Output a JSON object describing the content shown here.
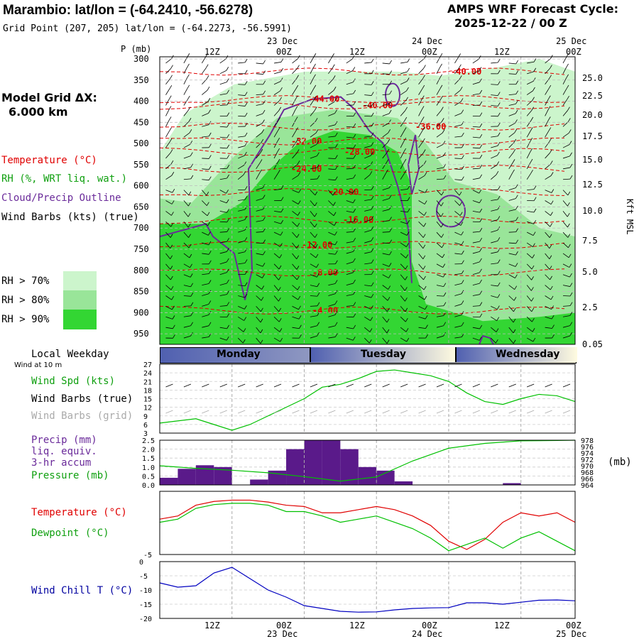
{
  "header": {
    "station_line": "Marambio:  lat/lon = (-64.2410, -56.6278)",
    "grid_line": "Grid Point (207, 205) lat/lon = (-64.2273, -56.5991)",
    "cycle_title": "AMPS WRF Forecast Cycle:",
    "cycle_value": "2025-12-22 / 00  Z"
  },
  "left_panel": {
    "p_label": "P (mb)",
    "model_grid_label": "Model Grid ΔX:",
    "model_grid_value": "6.000 km",
    "legend_temperature": "Temperature (°C)",
    "legend_rh": "RH (%, WRT liq. wat.)",
    "legend_cloud": "Cloud/Precip Outline",
    "legend_wind": "Wind Barbs (kts) (true)",
    "rh_70": "RH > 70%",
    "rh_80": "RH > 80%",
    "rh_90": "RH > 90%",
    "local_weekday": "Local Weekday",
    "wind_at_10m": "Wind at 10 m",
    "wind_spd": "Wind Spd (kts)",
    "wind_barbs_true": "Wind Barbs (true)",
    "wind_barbs_grid": "Wind Barbs (grid)",
    "precip_1": "Precip (mm)",
    "precip_2": "liq. equiv.",
    "precip_3": "3-hr accum",
    "pressure": "Pressure (mb)",
    "pressure_unit": "(mb)",
    "temperature2": "Temperature (°C)",
    "dewpoint": "Dewpoint (°C)",
    "windchill": "Wind Chill T (°C)"
  },
  "time_axis": {
    "top_ticks": [
      "12Z",
      "00Z",
      "12Z",
      "00Z",
      "12Z",
      "00Z"
    ],
    "top_dates": [
      "23 Dec",
      "24 Dec",
      "25 Dec"
    ],
    "bottom_ticks": [
      "12Z",
      "00Z",
      "12Z",
      "00Z",
      "12Z",
      "00Z"
    ],
    "bottom_dates": [
      "23 Dec",
      "24 Dec",
      "25 Dec"
    ],
    "weekdays": [
      "Monday",
      "Tuesday",
      "Wednesday"
    ]
  },
  "colors": {
    "temperature": "#e00000",
    "dewpoint": "#00c000",
    "windspd": "#00c000",
    "rh70": "#ccf5cc",
    "rh80": "#99e599",
    "rh90": "#33d633",
    "cloud": "#6a2a9a",
    "precip": "#5a1a8a",
    "windchill": "#0000c0",
    "label_red": "#e00000",
    "label_green": "#10a010",
    "label_purple": "#6a2a9a",
    "label_grey": "#aaaaaa",
    "label_blue": "#0000a0"
  },
  "chart_data": [
    {
      "type": "heatmap",
      "name": "vertical cross-section",
      "y_axis_left": {
        "label": "P (mb)",
        "ticks": [
          300,
          350,
          400,
          450,
          500,
          550,
          600,
          650,
          700,
          750,
          800,
          850,
          900,
          950
        ]
      },
      "y_axis_right": {
        "label": "Kft MSL",
        "ticks": [
          "25.0",
          "22.5",
          "20.0",
          "17.5",
          "15.0",
          "12.5",
          "10.0",
          "7.5",
          "5.0",
          "2.5",
          "0.05"
        ]
      },
      "temperature_contour_labels": [
        "-40.00",
        "-44.00",
        "-40.00",
        "-36.00",
        "-32.00",
        "-28.00",
        "-24.00",
        "-20.00",
        "-16.00",
        "-12.00",
        "-8.00",
        "-4.00"
      ]
    },
    {
      "type": "line",
      "name": "wind speed",
      "yticks": [
        3,
        6,
        9,
        12,
        15,
        18,
        21,
        24,
        27
      ],
      "ylim": [
        3,
        27
      ],
      "x_hours": [
        0,
        6,
        9,
        12,
        15,
        18,
        21,
        24,
        27,
        30,
        33,
        36,
        39,
        42,
        45,
        48,
        51,
        54,
        57,
        60,
        63,
        66,
        69
      ],
      "values": [
        6.5,
        8,
        6,
        4,
        6,
        9,
        12,
        15,
        19,
        20,
        22,
        24.5,
        25,
        24,
        23,
        21,
        17,
        14,
        13,
        15,
        16.5,
        16,
        14
      ]
    },
    {
      "type": "bar",
      "name": "precip and pressure",
      "yticks_left": [
        "0.0",
        "0.5",
        "1.0",
        "1.5",
        "2.0",
        "2.5"
      ],
      "yticks_right": [
        "964",
        "966",
        "968",
        "970",
        "972",
        "974",
        "976",
        "978"
      ],
      "precip_x_hours": [
        0,
        3,
        6,
        9,
        12,
        15,
        18,
        21,
        24,
        27,
        30,
        33,
        36,
        39,
        42,
        45,
        48,
        51,
        54,
        57,
        60,
        63,
        66
      ],
      "precip_values": [
        0.4,
        0.9,
        1.1,
        1.0,
        0.0,
        0.3,
        0.8,
        2.0,
        2.5,
        2.5,
        2.0,
        1.0,
        0.8,
        0.2,
        0.0,
        0.0,
        0.0,
        0.0,
        0.0,
        0.1,
        0.0,
        0.0,
        0.0
      ],
      "pressure_x_hours": [
        0,
        6,
        12,
        18,
        24,
        30,
        36,
        42,
        48,
        54,
        60,
        66,
        69
      ],
      "pressure_values": [
        970,
        969.2,
        968.6,
        967.8,
        966.6,
        965.2,
        966.5,
        971.5,
        975.5,
        977,
        977.8,
        977.9,
        978
      ]
    },
    {
      "type": "line",
      "name": "temperature and dewpoint",
      "yticks": [
        "-5"
      ],
      "x_hours": [
        0,
        3,
        6,
        9,
        12,
        15,
        18,
        21,
        24,
        27,
        30,
        33,
        36,
        39,
        42,
        45,
        48,
        51,
        54,
        57,
        60,
        63,
        66,
        69
      ],
      "temperature": [
        0.6,
        1.1,
        2.8,
        3.4,
        3.6,
        3.6,
        3.3,
        2.8,
        2.6,
        1.6,
        1.6,
        2.1,
        2.6,
        2.1,
        1.1,
        -0.4,
        -2.9,
        -4.2,
        -2.6,
        0.1,
        1.6,
        1.1,
        1.6,
        0.1
      ],
      "dewpoint": [
        0.1,
        0.6,
        2.3,
        2.9,
        3.1,
        3.1,
        2.8,
        1.8,
        1.8,
        1.1,
        0.1,
        0.6,
        1.1,
        0.1,
        -0.9,
        -2.4,
        -4.4,
        -3.4,
        -2.4,
        -4.0,
        -2.4,
        -1.4,
        -2.9,
        -4.4
      ],
      "ylim": [
        -5,
        5
      ]
    },
    {
      "type": "line",
      "name": "wind chill",
      "yticks": [
        "0",
        "-5",
        "-10",
        "-15",
        "-20"
      ],
      "ylim": [
        -20,
        0
      ],
      "x_hours": [
        0,
        3,
        6,
        9,
        12,
        15,
        18,
        21,
        24,
        27,
        30,
        33,
        36,
        39,
        42,
        45,
        48,
        51,
        54,
        57,
        60,
        63,
        66,
        69
      ],
      "values": [
        -7.5,
        -9,
        -8.5,
        -4,
        -2,
        -6,
        -10,
        -12.5,
        -15.5,
        -16.5,
        -17.5,
        -17.8,
        -17.7,
        -17,
        -16.5,
        -16.3,
        -16.2,
        -14.5,
        -14.5,
        -15,
        -14.3,
        -13.6,
        -13.5,
        -13.8
      ]
    }
  ]
}
